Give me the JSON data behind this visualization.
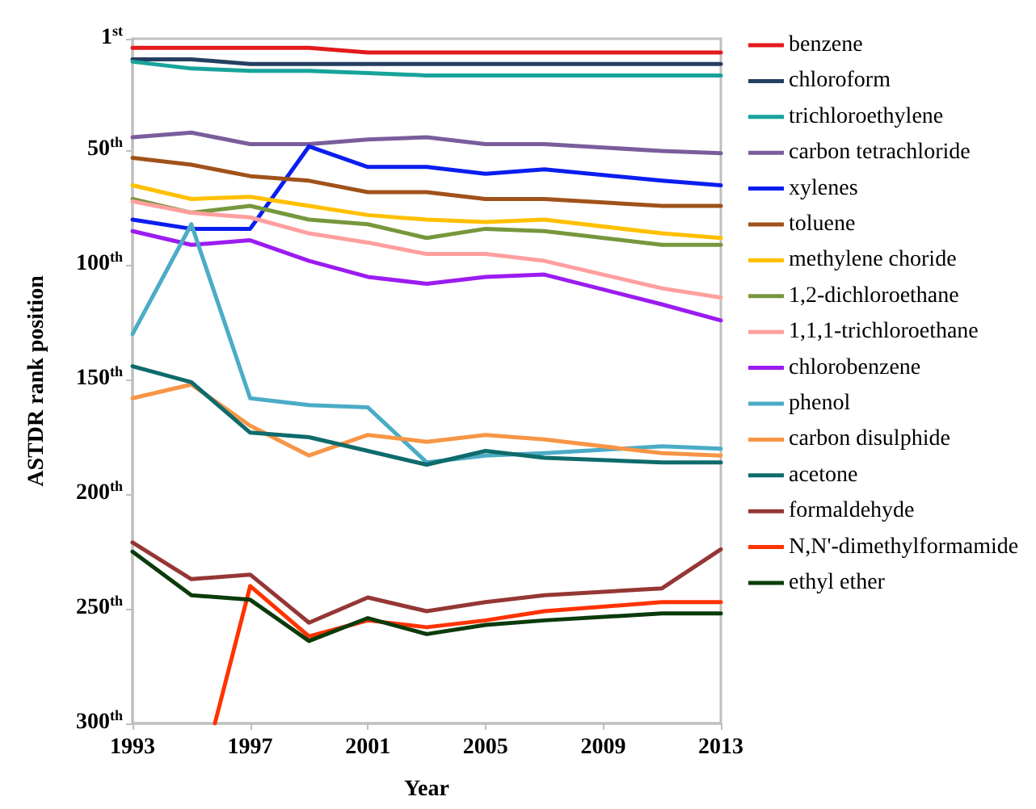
{
  "chart_data": {
    "type": "line",
    "xlabel": "Year",
    "ylabel": "ASTDR rank position",
    "x": [
      1993,
      1995,
      1997,
      1999,
      2001,
      2003,
      2005,
      2007,
      2011,
      2013
    ],
    "xlim": [
      1993,
      2013
    ],
    "xticks": [
      1993,
      1997,
      2001,
      2005,
      2009,
      2013
    ],
    "ylim": [
      300,
      1
    ],
    "yticks": [
      {
        "value": 1,
        "label": "1$^{st}$"
      },
      {
        "value": 50,
        "label": "50$^{th}$"
      },
      {
        "value": 100,
        "label": "100$^{th}$"
      },
      {
        "value": 150,
        "label": "150$^{th}$"
      },
      {
        "value": 200,
        "label": "200$^{th}$"
      },
      {
        "value": 250,
        "label": "250$^{th}$"
      },
      {
        "value": 300,
        "label": "300$^{th}$"
      }
    ],
    "grid": false,
    "legend": "right",
    "marker": "none",
    "line_style": "solid",
    "series": [
      {
        "name": "benzene",
        "color": "#e31a1c",
        "values": [
          5,
          5,
          5,
          5,
          7,
          7,
          7,
          7,
          7,
          7
        ]
      },
      {
        "name": "chloroform",
        "color": "#243f60",
        "values": [
          10,
          10,
          12,
          12,
          12,
          12,
          12,
          12,
          12,
          12
        ]
      },
      {
        "name": "trichloroethylene",
        "color": "#17a39a",
        "values": [
          11,
          14,
          15,
          15,
          16,
          17,
          17,
          17,
          17,
          17
        ]
      },
      {
        "name": "carbon tetrachloride",
        "color": "#7a5d9b",
        "values": [
          44,
          42,
          47,
          47,
          45,
          44,
          47,
          47,
          50,
          51
        ]
      },
      {
        "name": "xylenes",
        "color": "#0a1ef0",
        "values": [
          80,
          84,
          84,
          48,
          57,
          57,
          60,
          58,
          63,
          65
        ]
      },
      {
        "name": "toluene",
        "color": "#a0521a",
        "values": [
          53,
          56,
          61,
          63,
          68,
          68,
          71,
          71,
          74,
          74
        ]
      },
      {
        "name": "methylene choride",
        "color": "#ffc000",
        "values": [
          65,
          71,
          70,
          74,
          78,
          80,
          81,
          80,
          86,
          88
        ]
      },
      {
        "name": "1,2-dichloroethane",
        "color": "#77973d",
        "values": [
          71,
          77,
          74,
          80,
          82,
          88,
          84,
          85,
          91,
          91
        ]
      },
      {
        "name": "1,1,1-trichloroethane",
        "color": "#ff9f9f",
        "values": [
          72,
          77,
          79,
          86,
          90,
          95,
          95,
          98,
          110,
          114
        ]
      },
      {
        "name": "chlorobenzene",
        "color": "#9b1cf0",
        "values": [
          85,
          91,
          89,
          98,
          105,
          108,
          105,
          104,
          117,
          124
        ]
      },
      {
        "name": "phenol",
        "color": "#4bacc6",
        "values": [
          130,
          82,
          158,
          161,
          162,
          186,
          183,
          182,
          179,
          180
        ]
      },
      {
        "name": "carbon disulphide",
        "color": "#f79646",
        "values": [
          158,
          152,
          170,
          183,
          174,
          177,
          174,
          176,
          182,
          183
        ]
      },
      {
        "name": "acetone",
        "color": "#0f6b6b",
        "values": [
          144,
          151,
          173,
          175,
          181,
          187,
          181,
          184,
          186,
          186
        ]
      },
      {
        "name": "formaldehyde",
        "color": "#953735",
        "values": [
          221,
          237,
          235,
          256,
          245,
          251,
          247,
          244,
          241,
          224
        ]
      },
      {
        "name": "N,N'-dimethylformamide",
        "color": "#ff3300",
        "x": [
          1995.8,
          1997,
          1999,
          2001,
          2003,
          2005,
          2007,
          2011,
          2013
        ],
        "values": [
          300,
          240,
          262,
          255,
          258,
          255,
          251,
          247,
          247
        ]
      },
      {
        "name": "ethyl ether",
        "color": "#0b3b0b",
        "values": [
          225,
          244,
          246,
          264,
          254,
          261,
          257,
          255,
          252,
          252
        ]
      }
    ]
  }
}
